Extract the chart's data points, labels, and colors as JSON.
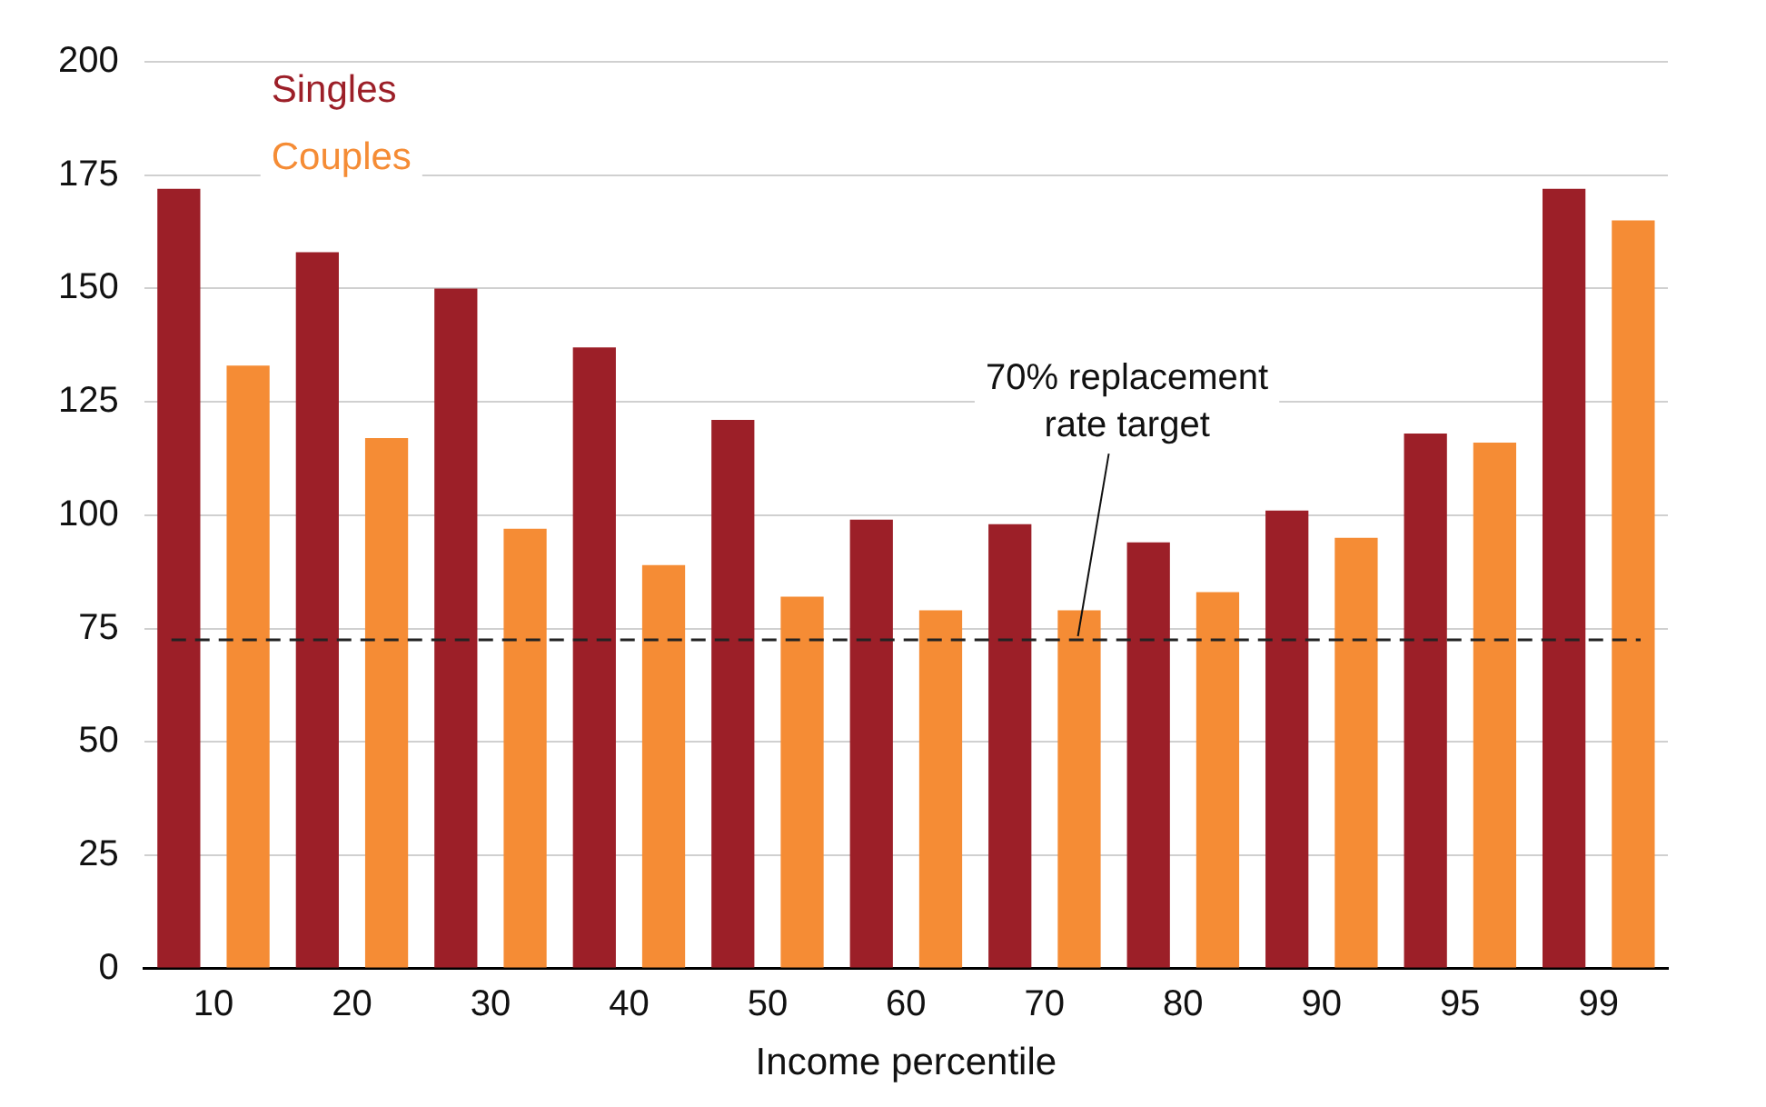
{
  "chart_data": {
    "type": "bar",
    "xlabel": "Income percentile",
    "categories": [
      "10",
      "20",
      "30",
      "40",
      "50",
      "60",
      "70",
      "80",
      "90",
      "95",
      "99"
    ],
    "series": [
      {
        "name": "Singles",
        "color": "#9c1f28",
        "values": [
          172,
          158,
          150,
          137,
          121,
          99,
          98,
          94,
          101,
          118,
          172
        ]
      },
      {
        "name": "Couples",
        "color": "#f58c35",
        "values": [
          133,
          117,
          97,
          89,
          82,
          79,
          79,
          83,
          95,
          116,
          165
        ]
      }
    ],
    "ylim": [
      0,
      200
    ],
    "yticks": [
      0,
      25,
      50,
      75,
      100,
      125,
      150,
      175,
      200
    ],
    "grid": "y",
    "legend": "top left",
    "ref_lines": [
      {
        "axis": "y",
        "value": 72.5,
        "label": "70% replacement\nrate target",
        "line_style": "dashed",
        "color": "#222222"
      }
    ]
  }
}
